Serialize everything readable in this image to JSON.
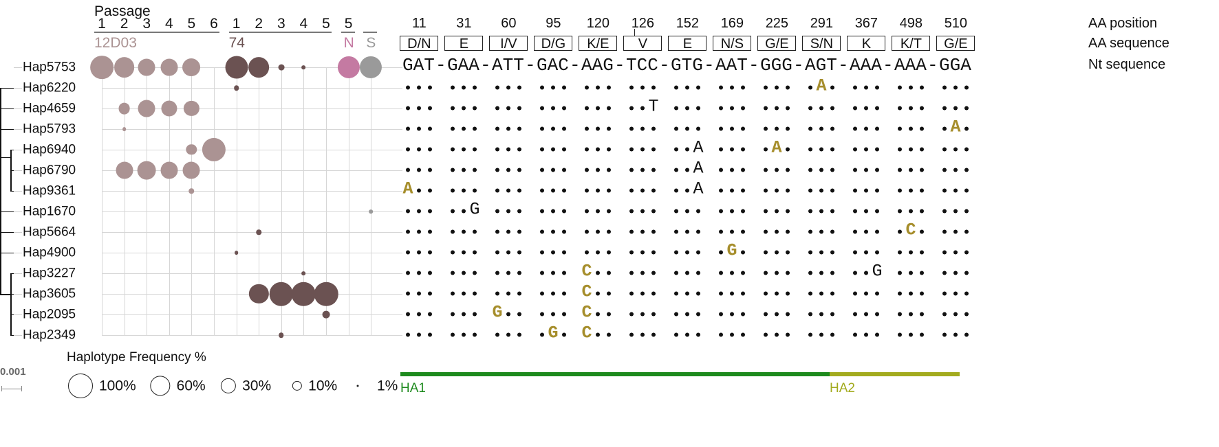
{
  "header": {
    "passage_label": "Passage",
    "groups": [
      {
        "name": "12D03",
        "color": "#ab9393",
        "passages": [
          "1",
          "2",
          "3",
          "4",
          "5",
          "6"
        ]
      },
      {
        "name": "74",
        "color": "#6b5252",
        "passages": [
          "1",
          "2",
          "3",
          "4",
          "5"
        ]
      },
      {
        "name": "N",
        "color": "#c47aa2",
        "passages": [
          "5"
        ]
      },
      {
        "name": "S",
        "color": "#9a9a9a",
        "passages": [
          ""
        ]
      }
    ]
  },
  "haplotypes": [
    "Hap5753",
    "Hap6220",
    "Hap4659",
    "Hap5793",
    "Hap6940",
    "Hap6790",
    "Hap9361",
    "Hap1670",
    "Hap5664",
    "Hap4900",
    "Hap3227",
    "Hap3605",
    "Hap2095",
    "Hap2349"
  ],
  "frequency_columns": [
    "12D03-1",
    "12D03-2",
    "12D03-3",
    "12D03-4",
    "12D03-5",
    "12D03-6",
    "74-1",
    "74-2",
    "74-3",
    "74-4",
    "74-5",
    "N-5",
    "S"
  ],
  "frequencies_percent": {
    "Hap5753": {
      "12D03-1": 85,
      "12D03-2": 62,
      "12D03-3": 40,
      "12D03-4": 40,
      "12D03-5": 44,
      "74-1": 80,
      "74-2": 62,
      "74-3": 3,
      "74-4": 1,
      "N-5": 75,
      "S": 75
    },
    "Hap6220": {
      "74-1": 2
    },
    "Hap4659": {
      "12D03-2": 15,
      "12D03-3": 40,
      "12D03-4": 33,
      "12D03-5": 30
    },
    "Hap5793": {
      "12D03-2": 1
    },
    "Hap6940": {
      "12D03-5": 12,
      "12D03-6": 88
    },
    "Hap6790": {
      "12D03-2": 40,
      "12D03-3": 48,
      "12D03-4": 40,
      "12D03-5": 40
    },
    "Hap9361": {
      "12D03-5": 2
    },
    "Hap1670": {
      "S": 1
    },
    "Hap5664": {
      "74-2": 2
    },
    "Hap4900": {
      "74-1": 1
    },
    "Hap3227": {
      "74-4": 1
    },
    "Hap3605": {
      "74-2": 55,
      "74-3": 90,
      "74-4": 90,
      "74-5": 90
    },
    "Hap2095": {
      "74-5": 5
    },
    "Hap2349": {
      "74-3": 2
    }
  },
  "sequence": {
    "aa_position_label": "AA position",
    "aa_sequence_label": "AA sequence",
    "nt_sequence_label": "Nt sequence",
    "aa_positions": [
      "11",
      "31",
      "60",
      "95",
      "120",
      "126",
      "152",
      "169",
      "225",
      "291",
      "367",
      "498",
      "510"
    ],
    "aa_sequence": [
      "D/N",
      "E",
      "I/V",
      "D/G",
      "K/E",
      "V",
      "E",
      "N/S",
      "G/E",
      "S/N",
      "K",
      "K/T",
      "G/E"
    ],
    "nt_sequence": [
      "GAT",
      "GAA",
      "ATT",
      "GAC",
      "AAG",
      "TCC",
      "GTG",
      "AAT",
      "GGG",
      "AGT",
      "AAA",
      "AAA",
      "GGA"
    ],
    "separator": "-",
    "mutations": [
      {
        "hap": "Hap6220",
        "codon": 9,
        "pos": 2,
        "nt": "A",
        "type": "nonsynonymous"
      },
      {
        "hap": "Hap4659",
        "codon": 5,
        "pos": 3,
        "nt": "T",
        "type": "synonymous"
      },
      {
        "hap": "Hap5793",
        "codon": 12,
        "pos": 2,
        "nt": "A",
        "type": "nonsynonymous"
      },
      {
        "hap": "Hap6940",
        "codon": 6,
        "pos": 3,
        "nt": "A",
        "type": "synonymous"
      },
      {
        "hap": "Hap6940",
        "codon": 8,
        "pos": 2,
        "nt": "A",
        "type": "nonsynonymous"
      },
      {
        "hap": "Hap6790",
        "codon": 6,
        "pos": 3,
        "nt": "A",
        "type": "synonymous"
      },
      {
        "hap": "Hap9361",
        "codon": 0,
        "pos": 1,
        "nt": "A",
        "type": "nonsynonymous"
      },
      {
        "hap": "Hap9361",
        "codon": 6,
        "pos": 3,
        "nt": "A",
        "type": "synonymous"
      },
      {
        "hap": "Hap1670",
        "codon": 1,
        "pos": 3,
        "nt": "G",
        "type": "synonymous"
      },
      {
        "hap": "Hap5664",
        "codon": 11,
        "pos": 2,
        "nt": "C",
        "type": "nonsynonymous"
      },
      {
        "hap": "Hap4900",
        "codon": 7,
        "pos": 2,
        "nt": "G",
        "type": "nonsynonymous"
      },
      {
        "hap": "Hap3227",
        "codon": 4,
        "pos": 1,
        "nt": "C",
        "type": "nonsynonymous"
      },
      {
        "hap": "Hap3227",
        "codon": 10,
        "pos": 3,
        "nt": "G",
        "type": "synonymous"
      },
      {
        "hap": "Hap3605",
        "codon": 4,
        "pos": 1,
        "nt": "C",
        "type": "nonsynonymous"
      },
      {
        "hap": "Hap2095",
        "codon": 2,
        "pos": 1,
        "nt": "G",
        "type": "nonsynonymous"
      },
      {
        "hap": "Hap2095",
        "codon": 4,
        "pos": 1,
        "nt": "C",
        "type": "nonsynonymous"
      },
      {
        "hap": "Hap2349",
        "codon": 3,
        "pos": 2,
        "nt": "G",
        "type": "nonsynonymous"
      },
      {
        "hap": "Hap2349",
        "codon": 4,
        "pos": 1,
        "nt": "C",
        "type": "nonsynonymous"
      }
    ],
    "colors": {
      "nonsynonymous": "#a68e2c",
      "synonymous": "#111111"
    }
  },
  "domains": [
    {
      "label": "HA1",
      "color": "#1d8a1d",
      "from_codon": 0,
      "to_codon": 9.6
    },
    {
      "label": "HA2",
      "color": "#a3ab1e",
      "from_codon": 9.6,
      "to_codon": 12.5
    }
  ],
  "legend": {
    "title": "Haplotype Frequency %",
    "items": [
      {
        "label": "100%",
        "value": 100
      },
      {
        "label": "60%",
        "value": 60
      },
      {
        "label": "30%",
        "value": 30
      },
      {
        "label": "10%",
        "value": 10
      },
      {
        "label": "1%",
        "value": 1
      }
    ]
  },
  "scale_bar": {
    "label": "0.001"
  }
}
